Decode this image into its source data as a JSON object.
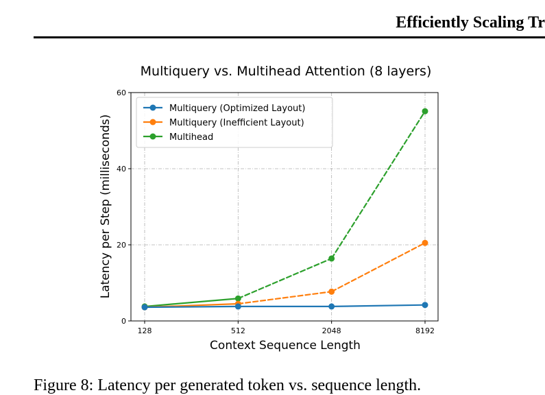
{
  "header": {
    "running_title": "Efficiently Scaling Tr"
  },
  "caption": "Figure 8: Latency per generated token vs. sequence length.",
  "chart_data": {
    "type": "line",
    "title": "Multiquery vs. Multihead Attention (8 layers)",
    "xlabel": "Context Sequence Length",
    "ylabel": "Latency per Step (milliseconds)",
    "x_scale": "log2",
    "x": [
      128,
      512,
      2048,
      8192
    ],
    "x_ticks": [
      "128",
      "512",
      "2048",
      "8192"
    ],
    "ylim": [
      0,
      60
    ],
    "y_ticks": [
      0,
      20,
      40,
      60
    ],
    "grid": true,
    "legend_position": "top-left",
    "series": [
      {
        "name": "Multiquery (Optimized Layout)",
        "color": "#1f77b4",
        "values": [
          3.6,
          3.8,
          3.8,
          4.2
        ],
        "line_style": "solid"
      },
      {
        "name": "Multiquery (Inefficient Layout)",
        "color": "#ff7f0e",
        "values": [
          3.6,
          4.5,
          7.7,
          20.5
        ],
        "line_style": "solid-then-dashed",
        "dash_after_index": 1
      },
      {
        "name": "Multihead",
        "color": "#2ca02c",
        "values": [
          3.8,
          5.9,
          16.4,
          55.1
        ],
        "line_style": "solid-then-dashed",
        "dash_after_index": 1
      }
    ]
  }
}
